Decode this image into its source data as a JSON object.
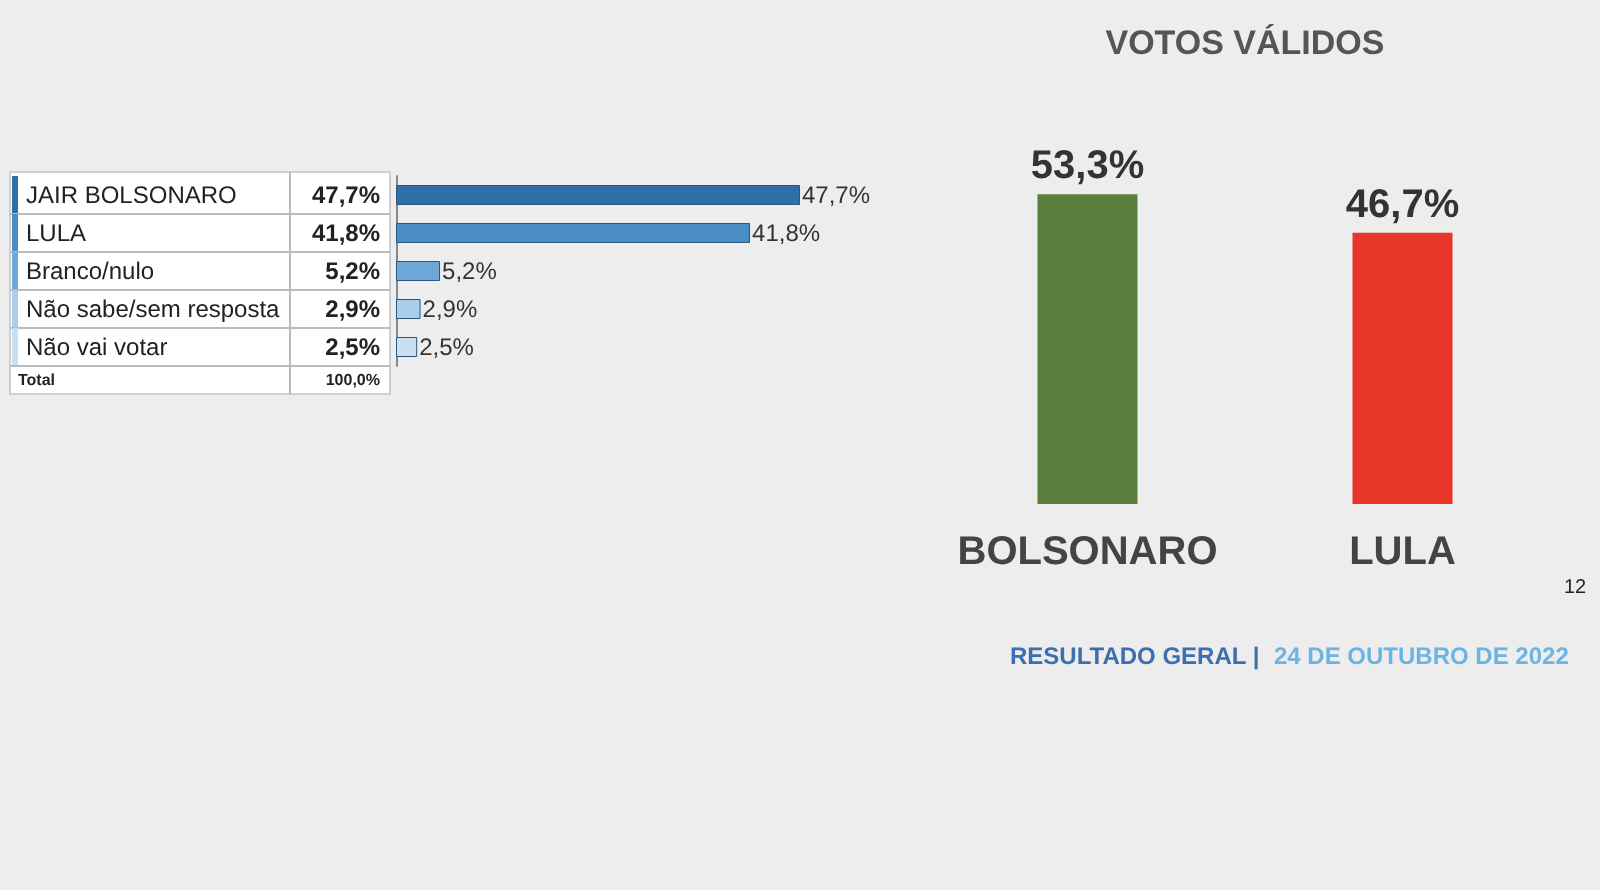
{
  "chart_data": [
    {
      "type": "bar",
      "orientation": "horizontal",
      "categories": [
        "JAIR BOLSONARO",
        "LULA",
        "Branco/nulo",
        "Não sabe/sem resposta",
        "Não vai votar"
      ],
      "values": [
        47.7,
        41.8,
        5.2,
        2.9,
        2.5
      ],
      "colors": [
        "#2f6fa8",
        "#4a8cc4",
        "#6fa8d8",
        "#a9cdea",
        "#c8e0f2"
      ],
      "value_labels": [
        "47,7%",
        "41,8%",
        "5,2%",
        "2,9%",
        "2,5%"
      ],
      "annotations": [
        "Total",
        "100,0%"
      ]
    },
    {
      "type": "bar",
      "title": "VOTOS VÁLIDOS",
      "categories": [
        "BOLSONARO",
        "LULA"
      ],
      "values": [
        53.3,
        46.7
      ],
      "colors": [
        "#5a7f3c",
        "#e8362a"
      ],
      "value_labels": [
        "53,3%",
        "46,7%"
      ],
      "annotations": [
        "RESULTADO GERAL |",
        "24 DE OUTUBRO DE 2022",
        "12"
      ]
    }
  ]
}
